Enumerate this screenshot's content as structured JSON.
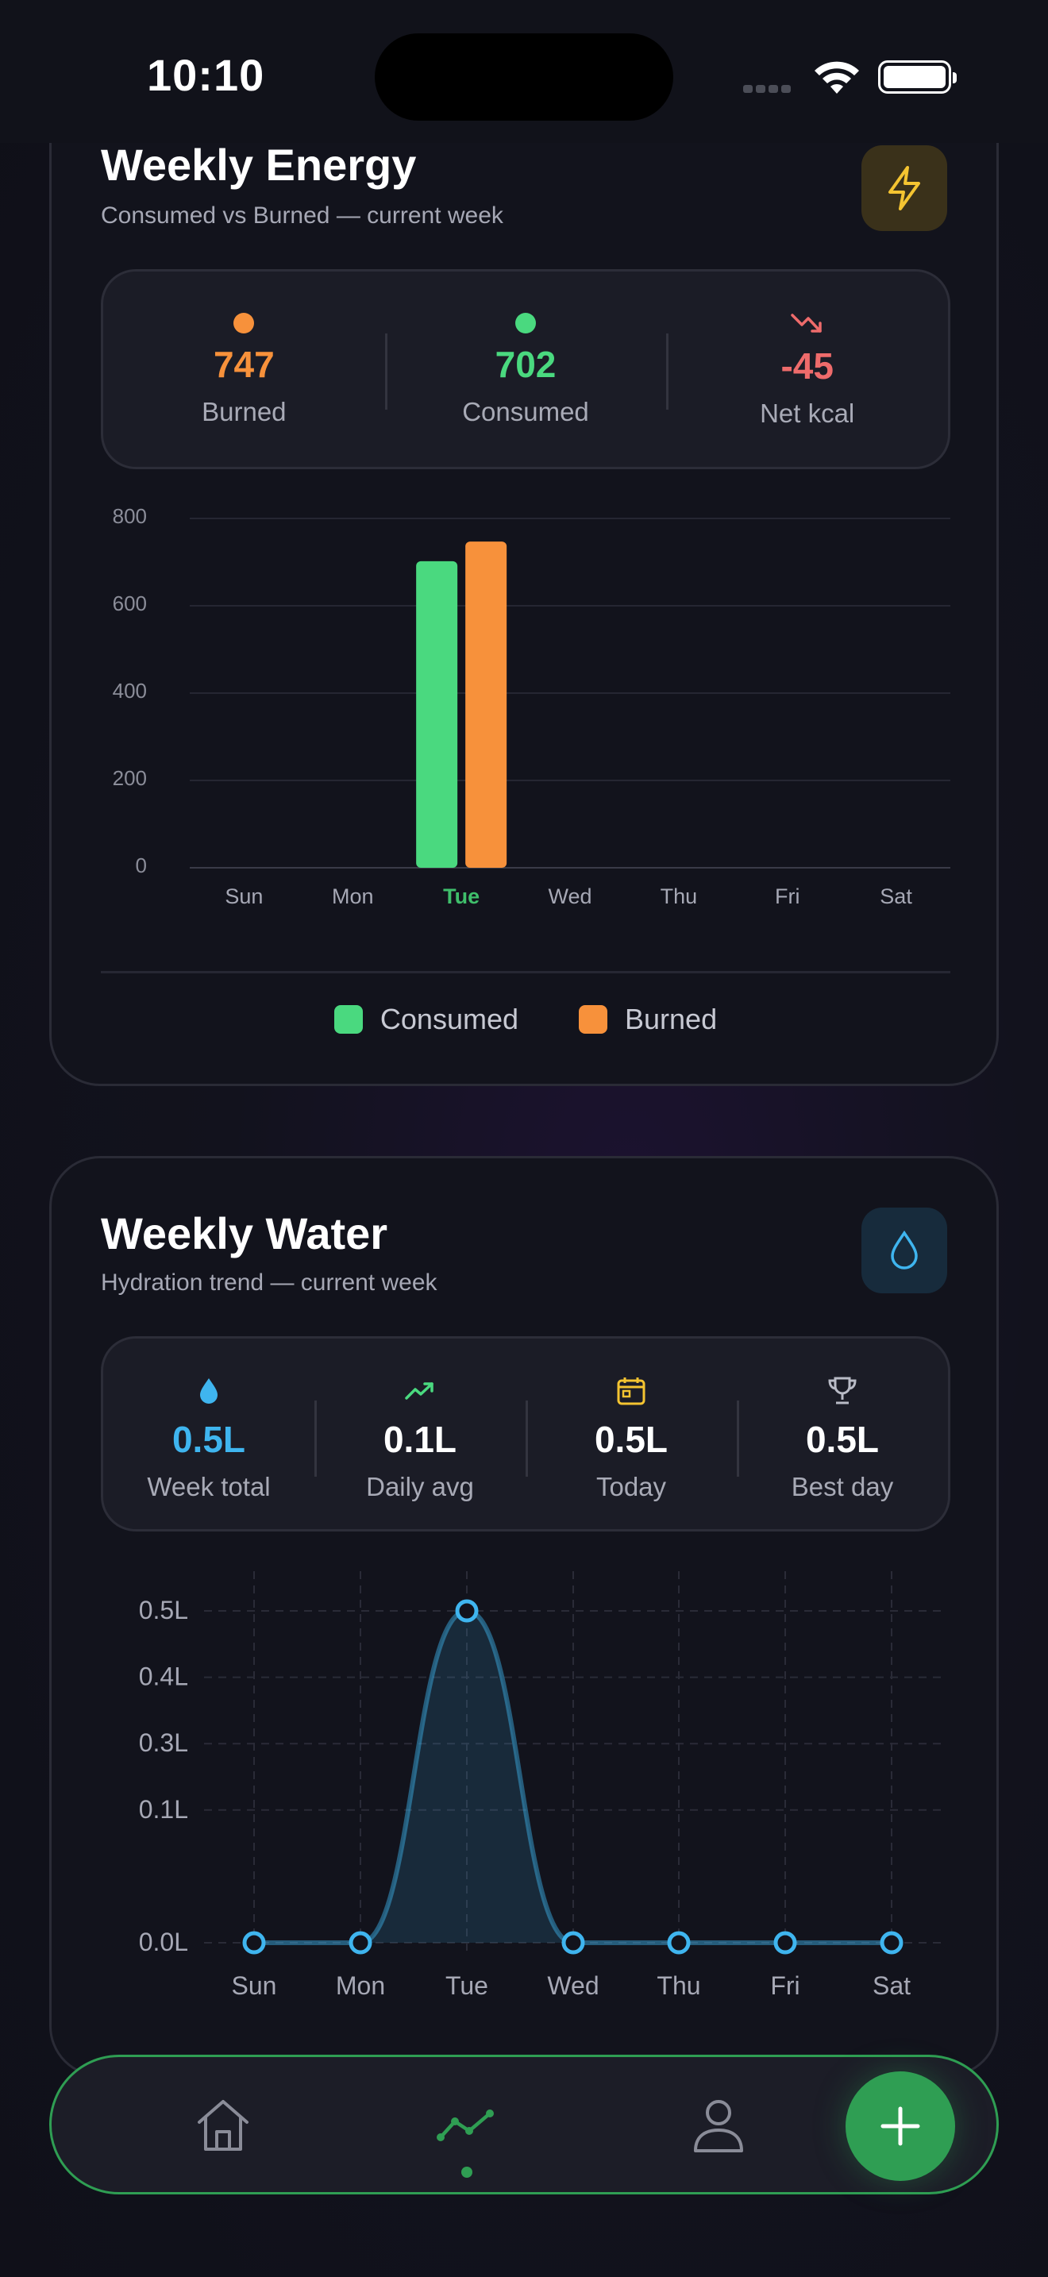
{
  "status_bar": {
    "time": "10:10"
  },
  "energy": {
    "title": "Weekly Energy",
    "subtitle": "Consumed vs Burned — current week",
    "badge_icon": "lightning-icon",
    "stats": [
      {
        "value": "747",
        "label": "Burned",
        "color": "#f7913b"
      },
      {
        "value": "702",
        "label": "Consumed",
        "color": "#4ad97f"
      },
      {
        "value": "-45",
        "label": "Net kcal",
        "color": "#ee6b6b",
        "icon": "trend-down-icon"
      }
    ],
    "legend": [
      {
        "label": "Consumed",
        "color": "#4ad97f"
      },
      {
        "label": "Burned",
        "color": "#f7913b"
      }
    ]
  },
  "water": {
    "title": "Weekly Water",
    "subtitle": "Hydration trend — current week",
    "badge_icon": "water-drop-icon",
    "stats": [
      {
        "value": "0.5L",
        "label": "Week total",
        "icon": "water-drop-icon",
        "color": "#3fb5ef"
      },
      {
        "value": "0.1L",
        "label": "Daily avg",
        "icon": "trend-up-icon",
        "color": "#ffffff"
      },
      {
        "value": "0.5L",
        "label": "Today",
        "icon": "calendar-icon",
        "color": "#ffffff"
      },
      {
        "value": "0.5L",
        "label": "Best day",
        "icon": "trophy-icon",
        "color": "#ffffff"
      }
    ]
  },
  "chart_data": [
    {
      "type": "bar",
      "categories": [
        "Sun",
        "Mon",
        "Tue",
        "Wed",
        "Thu",
        "Fri",
        "Sat"
      ],
      "highlight_category": "Tue",
      "series": [
        {
          "name": "Consumed",
          "values": [
            0,
            0,
            702,
            0,
            0,
            0,
            0
          ],
          "color": "#4ad97f"
        },
        {
          "name": "Burned",
          "values": [
            0,
            0,
            747,
            0,
            0,
            0,
            0
          ],
          "color": "#f7913b"
        }
      ],
      "yticks": [
        "800",
        "600",
        "400",
        "200",
        "0"
      ],
      "ylim": [
        0,
        800
      ],
      "grid": true,
      "legend": "bottom"
    },
    {
      "type": "area",
      "categories": [
        "Sun",
        "Mon",
        "Tue",
        "Wed",
        "Thu",
        "Fri",
        "Sat"
      ],
      "series": [
        {
          "values": [
            0,
            0,
            0.5,
            0,
            0,
            0,
            0
          ],
          "color": "#3fb5ef"
        }
      ],
      "yticks": [
        "0.5L",
        "0.4L",
        "0.3L",
        "0.1L",
        "0.0L"
      ],
      "ylim": [
        0,
        0.5
      ],
      "grid": true
    }
  ],
  "nav": {
    "items": [
      {
        "icon": "home-icon"
      },
      {
        "icon": "trend-chart-icon",
        "active": true
      },
      {
        "icon": "profile-icon"
      }
    ],
    "fab_icon": "plus-icon"
  }
}
